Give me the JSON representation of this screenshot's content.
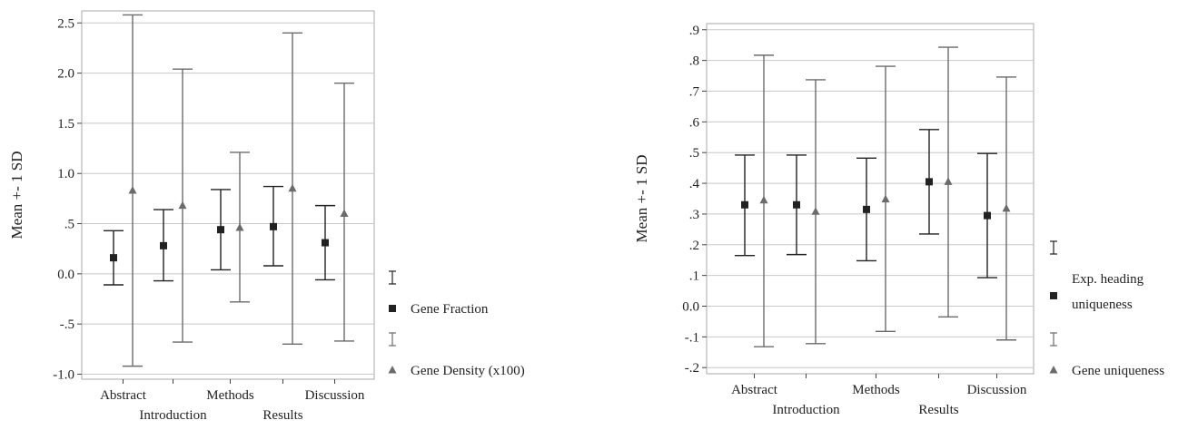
{
  "colors": {
    "series_dark": "#222222",
    "series_gray": "#6b6b6b",
    "grid": "#c8c8c8",
    "frame": "#aaaaaa"
  },
  "chart_data": [
    {
      "type": "errorbar",
      "ylabel": "Mean +- 1 SD",
      "ylim": [
        -1.05,
        2.62
      ],
      "y_ticks": [
        "-1.0",
        "-.5",
        "0.0",
        ".5",
        "1.0",
        "1.5",
        "2.0",
        "2.5"
      ],
      "y_tick_values": [
        -1.0,
        -0.5,
        0.0,
        0.5,
        1.0,
        1.5,
        2.0,
        2.5
      ],
      "categories": [
        "Abstract",
        "Introduction",
        "Methods",
        "Results",
        "Discussion"
      ],
      "grid": true,
      "legend_position": "right",
      "series": [
        {
          "name": "Gene Fraction",
          "marker": "square",
          "mean": [
            0.16,
            0.28,
            0.44,
            0.47,
            0.31
          ],
          "lower": [
            -0.11,
            -0.07,
            0.04,
            0.08,
            -0.06
          ],
          "upper": [
            0.43,
            0.64,
            0.84,
            0.87,
            0.68
          ]
        },
        {
          "name": "Gene Density (x100)",
          "marker": "triangle",
          "mean": [
            0.83,
            0.68,
            0.46,
            0.85,
            0.6
          ],
          "lower": [
            -0.92,
            -0.68,
            -0.28,
            -0.7,
            -0.67
          ],
          "upper": [
            2.58,
            2.04,
            1.21,
            2.4,
            1.9
          ]
        }
      ]
    },
    {
      "type": "errorbar",
      "ylabel": "Mean +- 1 SD",
      "ylim": [
        -0.22,
        0.92
      ],
      "y_ticks": [
        "-.2",
        "-.1",
        "0.0",
        ".1",
        ".2",
        ".3",
        ".4",
        ".5",
        ".6",
        ".7",
        ".8",
        ".9"
      ],
      "y_tick_values": [
        -0.2,
        -0.1,
        0.0,
        0.1,
        0.2,
        0.3,
        0.4,
        0.5,
        0.6,
        0.7,
        0.8,
        0.9
      ],
      "categories": [
        "Abstract",
        "Introduction",
        "Methods",
        "Results",
        "Discussion"
      ],
      "grid": true,
      "legend_position": "right",
      "series": [
        {
          "name": "Exp. heading uniqueness",
          "name_lines": [
            "Exp. heading",
            "uniqueness"
          ],
          "marker": "square",
          "mean": [
            0.33,
            0.33,
            0.315,
            0.405,
            0.295
          ],
          "lower": [
            0.165,
            0.168,
            0.148,
            0.235,
            0.093
          ],
          "upper": [
            0.492,
            0.492,
            0.482,
            0.575,
            0.497
          ]
        },
        {
          "name": "Gene uniqueness",
          "name_lines": [
            "Gene uniqueness"
          ],
          "marker": "triangle",
          "mean": [
            0.345,
            0.308,
            0.348,
            0.405,
            0.318
          ],
          "lower": [
            -0.132,
            -0.122,
            -0.082,
            -0.035,
            -0.11
          ],
          "upper": [
            0.817,
            0.737,
            0.781,
            0.843,
            0.746
          ]
        }
      ]
    }
  ]
}
